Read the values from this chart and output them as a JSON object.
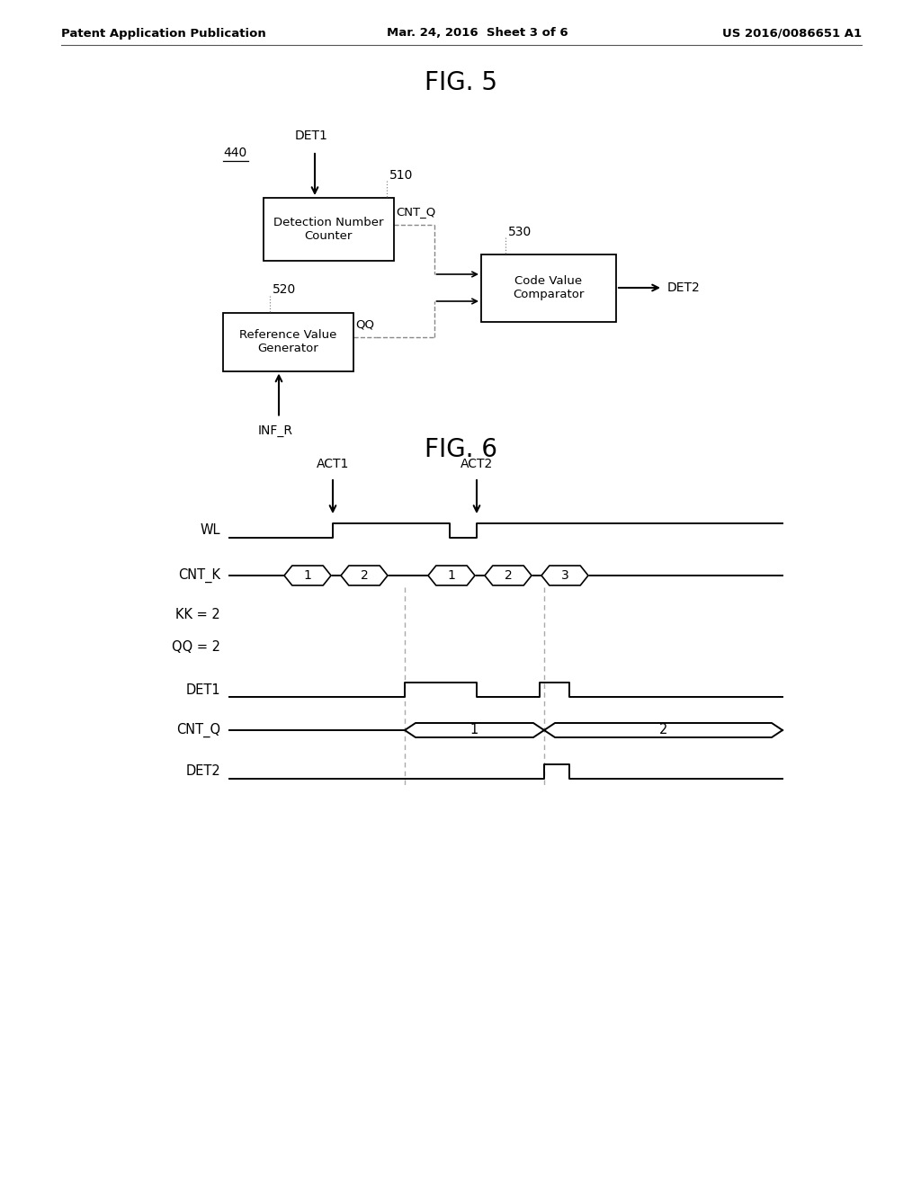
{
  "bg_color": "#ffffff",
  "header_left": "Patent Application Publication",
  "header_mid": "Mar. 24, 2016  Sheet 3 of 6",
  "header_right": "US 2016/0086651 A1",
  "fig5_title": "FIG. 5",
  "fig6_title": "FIG. 6",
  "label_440": "440",
  "label_510": "510",
  "label_520": "520",
  "label_530": "530",
  "box510_text": "Detection Number\nCounter",
  "box520_text": "Reference Value\nGenerator",
  "box530_text": "Code Value\nComparator",
  "signal_det1_in": "DET1",
  "signal_cnt_q": "CNT_Q",
  "signal_qq": "QQ",
  "signal_inf_r": "INF_R",
  "signal_det2": "DET2",
  "act1_label": "ACT1",
  "act2_label": "ACT2",
  "wl_label": "WL",
  "cntk_label": "CNT_K",
  "kk_label": "KK = 2",
  "qq_label": "QQ = 2",
  "det1_label": "DET1",
  "cntq_label": "CNT_Q",
  "det2_label": "DET2"
}
